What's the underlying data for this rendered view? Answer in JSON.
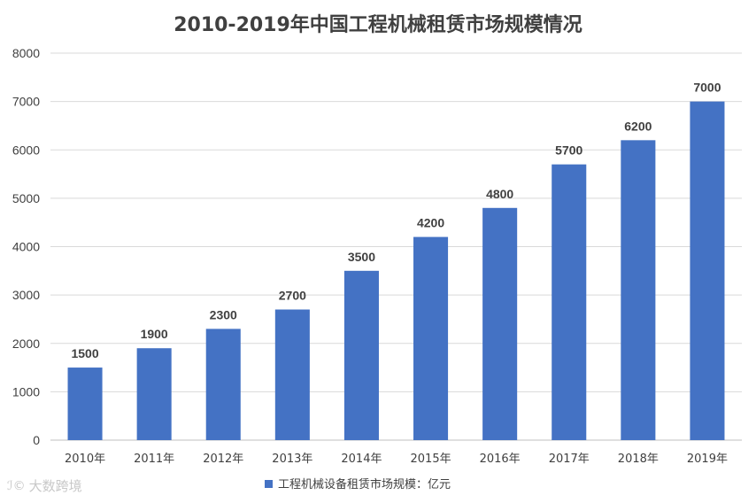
{
  "chart_data": {
    "type": "bar",
    "title": "2010-2019年中国工程机械租赁市场规模情况",
    "categories": [
      "2010年",
      "2011年",
      "2012年",
      "2013年",
      "2014年",
      "2015年",
      "2016年",
      "2017年",
      "2018年",
      "2019年"
    ],
    "series": [
      {
        "name": "工程机械设备租赁市场规模：亿元",
        "values": [
          1500,
          1900,
          2300,
          2700,
          3500,
          4200,
          4800,
          5700,
          6200,
          7000
        ]
      }
    ],
    "ylim": [
      0,
      8000
    ],
    "yticks": [
      0,
      1000,
      2000,
      3000,
      4000,
      5000,
      6000,
      7000,
      8000
    ],
    "xlabel": "",
    "ylabel": "",
    "grid": true,
    "legend_position": "bottom-center",
    "bar_color": "#4472C4",
    "grid_color": "#D9D9D9"
  },
  "watermark": {
    "icon": "ic-logo-icon",
    "glyph": "ℐ©",
    "text": "大数跨境"
  }
}
